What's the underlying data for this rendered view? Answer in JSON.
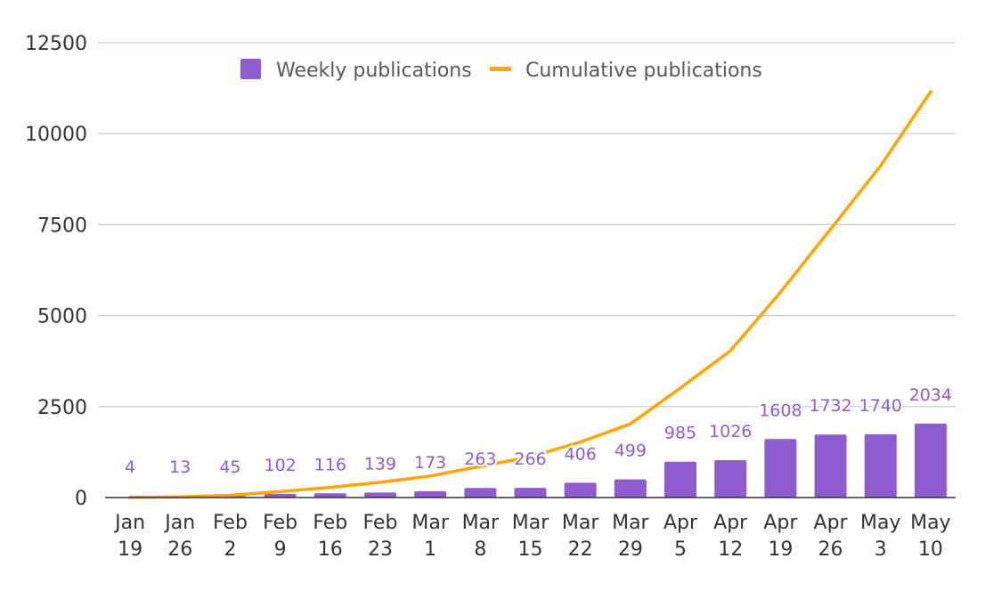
{
  "chart_data": {
    "type": "bar",
    "categories": [
      [
        "Jan",
        "19"
      ],
      [
        "Jan",
        "26"
      ],
      [
        "Feb",
        "2"
      ],
      [
        "Feb",
        "9"
      ],
      [
        "Feb",
        "16"
      ],
      [
        "Feb",
        "23"
      ],
      [
        "Mar",
        "1"
      ],
      [
        "Mar",
        "8"
      ],
      [
        "Mar",
        "15"
      ],
      [
        "Mar",
        "22"
      ],
      [
        "Mar",
        "29"
      ],
      [
        "Apr",
        "5"
      ],
      [
        "Apr",
        "12"
      ],
      [
        "Apr",
        "19"
      ],
      [
        "Apr",
        "26"
      ],
      [
        "May",
        "3"
      ],
      [
        "May",
        "10"
      ]
    ],
    "series": [
      {
        "name": "Weekly publications",
        "type": "bar",
        "color": "#8e5ccf",
        "values": [
          4,
          13,
          45,
          102,
          116,
          139,
          173,
          263,
          266,
          406,
          499,
          985,
          1026,
          1608,
          1732,
          1740,
          2034
        ],
        "data_labels": [
          "4",
          "13",
          "45",
          "102",
          "116",
          "139",
          "173",
          "263",
          "266",
          "406",
          "499",
          "985",
          "1026",
          "1608",
          "1732",
          "1740",
          "2034"
        ]
      },
      {
        "name": "Cumulative publications",
        "type": "line",
        "color": "#ffa500",
        "values": [
          4,
          17,
          62,
          164,
          280,
          419,
          592,
          855,
          1121,
          1527,
          2026,
          3011,
          4037,
          5645,
          7377,
          9117,
          11151
        ]
      }
    ],
    "y_ticks": [
      0,
      2500,
      5000,
      7500,
      10000,
      12500
    ],
    "y_tick_labels": [
      "0",
      "2500",
      "5000",
      "7500",
      "10000",
      "12500"
    ],
    "ylim": [
      0,
      12500
    ],
    "grid": true,
    "legend_position": "top-center"
  }
}
